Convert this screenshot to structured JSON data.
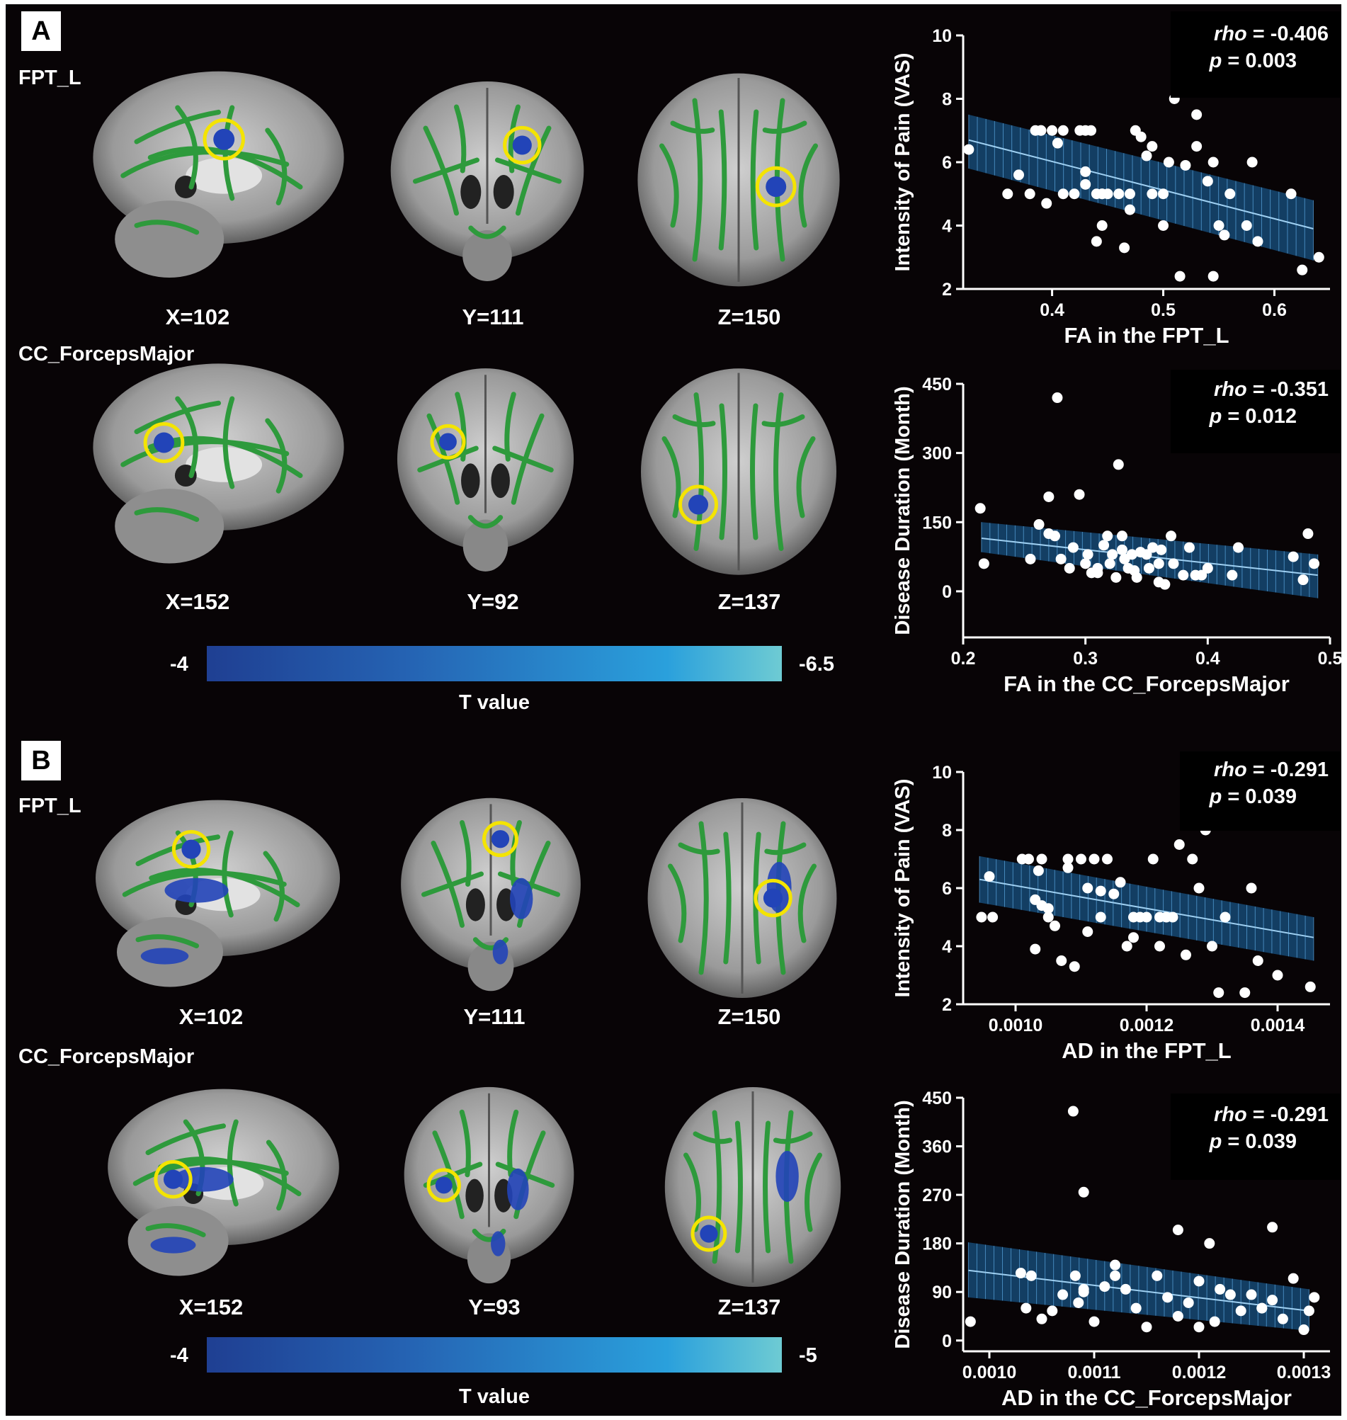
{
  "panels": {
    "A": {
      "letter": "A",
      "rows": [
        {
          "label": "FPT_L",
          "coords": [
            "X=102",
            "Y=111",
            "Z=150"
          ]
        },
        {
          "label": "CC_ForcepsMajor",
          "coords": [
            "X=152",
            "Y=92",
            "Z=137"
          ]
        }
      ],
      "colorbar": {
        "min_label": "-4",
        "max_label": "-6.5",
        "title": "T value"
      }
    },
    "B": {
      "letter": "B",
      "rows": [
        {
          "label": "FPT_L",
          "coords": [
            "X=102",
            "Y=111",
            "Z=150"
          ]
        },
        {
          "label": "CC_ForcepsMajor",
          "coords": [
            "X=152",
            "Y=93",
            "Z=137"
          ]
        }
      ],
      "colorbar": {
        "min_label": "-4",
        "max_label": "-5",
        "title": "T value"
      }
    }
  },
  "colors": {
    "background": "#080406",
    "tract_green": "#2e9a3c",
    "cluster_blue": "#2244b8",
    "circle_yellow": "#f4e400",
    "ci_band": "#1e6fb0",
    "points": "#ffffff"
  },
  "stats": [
    {
      "rho_label": "rho",
      "rho_value": " = -0.406",
      "p_label": "p",
      "p_value": " = 0.003"
    },
    {
      "rho_label": "rho",
      "rho_value": " = -0.351",
      "p_label": "p",
      "p_value": " = 0.012"
    },
    {
      "rho_label": "rho",
      "rho_value": " = -0.291",
      "p_label": "p",
      "p_value": " = 0.039"
    },
    {
      "rho_label": "rho",
      "rho_value": " = -0.291",
      "p_label": "p",
      "p_value": " = 0.039"
    }
  ],
  "chart_data": [
    {
      "type": "scatter",
      "panel": "A",
      "xlabel": "FA in the FPT_L",
      "ylabel": "Intensity of Pain (VAS)",
      "xlim": [
        0.32,
        0.65
      ],
      "ylim": [
        2,
        10
      ],
      "xticks": [
        0.4,
        0.5,
        0.6
      ],
      "xtick_labels": [
        "0.4",
        "0.5",
        "0.6"
      ],
      "yticks": [
        2,
        4,
        6,
        8,
        10
      ],
      "ytick_labels": [
        "2",
        "4",
        "6",
        "8",
        "10"
      ],
      "fit": {
        "x": [
          0.325,
          0.635
        ],
        "y": [
          6.7,
          3.9
        ],
        "ci_upper": [
          7.5,
          4.8
        ],
        "ci_lower": [
          5.8,
          2.9
        ]
      },
      "x": [
        0.325,
        0.37,
        0.36,
        0.38,
        0.385,
        0.39,
        0.4,
        0.41,
        0.405,
        0.39,
        0.395,
        0.425,
        0.43,
        0.435,
        0.42,
        0.41,
        0.43,
        0.44,
        0.445,
        0.45,
        0.445,
        0.44,
        0.46,
        0.465,
        0.47,
        0.475,
        0.48,
        0.485,
        0.49,
        0.49,
        0.5,
        0.5,
        0.505,
        0.51,
        0.52,
        0.515,
        0.53,
        0.53,
        0.54,
        0.545,
        0.55,
        0.555,
        0.56,
        0.575,
        0.58,
        0.585,
        0.615,
        0.625,
        0.64,
        0.445,
        0.43,
        0.47,
        0.545
      ],
      "y": [
        6.4,
        5.6,
        5.0,
        5.0,
        7.0,
        7.0,
        7.0,
        7.0,
        6.6,
        7.0,
        4.7,
        7.0,
        7.0,
        7.0,
        5.0,
        5.0,
        5.7,
        5.0,
        5.0,
        5.0,
        4.0,
        3.5,
        5.0,
        3.3,
        4.5,
        7.0,
        6.8,
        6.2,
        5.0,
        6.5,
        5.0,
        4.0,
        6.0,
        8.0,
        5.9,
        2.4,
        7.5,
        6.5,
        5.4,
        2.4,
        4.0,
        3.7,
        5.0,
        4.0,
        6.0,
        3.5,
        5.0,
        2.6,
        3.0,
        5.0,
        5.3,
        5.0,
        6.0
      ]
    },
    {
      "type": "scatter",
      "panel": "A",
      "xlabel": "FA in the CC_ForcepsMajor",
      "ylabel": "Disease Duration (Month)",
      "xlim": [
        0.2,
        0.5
      ],
      "ylim": [
        -100,
        450
      ],
      "xticks": [
        0.2,
        0.3,
        0.4,
        0.5
      ],
      "xtick_labels": [
        "0.2",
        "0.3",
        "0.4",
        "0.5"
      ],
      "yticks": [
        0,
        150,
        300,
        450
      ],
      "ytick_labels": [
        "0",
        "150",
        "300",
        "450"
      ],
      "fit": {
        "x": [
          0.215,
          0.49
        ],
        "y": [
          115,
          35
        ],
        "ci_upper": [
          150,
          80
        ],
        "ci_lower": [
          85,
          -15
        ]
      },
      "x": [
        0.214,
        0.217,
        0.255,
        0.262,
        0.27,
        0.27,
        0.277,
        0.275,
        0.28,
        0.287,
        0.29,
        0.295,
        0.3,
        0.302,
        0.305,
        0.31,
        0.31,
        0.315,
        0.318,
        0.32,
        0.322,
        0.325,
        0.327,
        0.33,
        0.332,
        0.335,
        0.338,
        0.34,
        0.342,
        0.345,
        0.35,
        0.352,
        0.355,
        0.36,
        0.362,
        0.365,
        0.37,
        0.372,
        0.38,
        0.385,
        0.39,
        0.395,
        0.4,
        0.42,
        0.425,
        0.47,
        0.478,
        0.482,
        0.487,
        0.33,
        0.36
      ],
      "y": [
        180,
        60,
        70,
        145,
        125,
        205,
        420,
        120,
        70,
        50,
        95,
        210,
        60,
        80,
        40,
        50,
        40,
        100,
        120,
        60,
        80,
        30,
        275,
        90,
        70,
        50,
        80,
        45,
        30,
        85,
        80,
        50,
        95,
        20,
        90,
        15,
        120,
        60,
        35,
        95,
        35,
        35,
        50,
        35,
        95,
        75,
        25,
        125,
        60,
        120,
        60
      ]
    },
    {
      "type": "scatter",
      "panel": "B",
      "xlabel": "AD in the FPT_L",
      "ylabel": "Intensity of Pain (VAS)",
      "xlim": [
        0.00092,
        0.00148
      ],
      "ylim": [
        2,
        10
      ],
      "xticks": [
        0.001,
        0.0012,
        0.0014
      ],
      "xtick_labels": [
        "0.0010",
        "0.0012",
        "0.0014"
      ],
      "yticks": [
        2,
        4,
        6,
        8,
        10
      ],
      "ytick_labels": [
        "2",
        "4",
        "6",
        "8",
        "10"
      ],
      "fit": {
        "x": [
          0.000945,
          0.001455
        ],
        "y": [
          6.3,
          4.3
        ],
        "ci_upper": [
          7.1,
          5.0
        ],
        "ci_lower": [
          5.5,
          3.5
        ]
      },
      "x": [
        0.000948,
        0.00096,
        0.000965,
        0.00101,
        0.00102,
        0.00103,
        0.00104,
        0.00103,
        0.001035,
        0.00105,
        0.00106,
        0.00107,
        0.00108,
        0.00109,
        0.0011,
        0.00111,
        0.00111,
        0.00112,
        0.00113,
        0.00114,
        0.00115,
        0.00116,
        0.00117,
        0.00118,
        0.00119,
        0.0012,
        0.00121,
        0.00122,
        0.00123,
        0.00124,
        0.00125,
        0.00126,
        0.00127,
        0.00128,
        0.00129,
        0.0013,
        0.00131,
        0.00132,
        0.00135,
        0.00136,
        0.00137,
        0.0014,
        0.00145,
        0.00104,
        0.00113,
        0.00105,
        0.00108,
        0.00118,
        0.00122
      ],
      "y": [
        5.0,
        6.4,
        5.0,
        7.0,
        7.0,
        5.6,
        7.0,
        3.9,
        6.6,
        5.0,
        4.7,
        3.5,
        7.0,
        3.3,
        7.0,
        4.5,
        6.0,
        7.0,
        5.0,
        7.0,
        5.8,
        6.2,
        4.0,
        5.0,
        5.0,
        5.0,
        7.0,
        4.0,
        5.0,
        5.0,
        7.5,
        3.7,
        7.0,
        6.0,
        8.0,
        4.0,
        2.4,
        5.0,
        2.4,
        6.0,
        3.5,
        3.0,
        2.6,
        5.4,
        5.9,
        5.3,
        6.7,
        4.3,
        5.0
      ]
    },
    {
      "type": "scatter",
      "panel": "B",
      "xlabel": "AD in the CC_ForcepsMajor",
      "ylabel": "Disease Duration (Month)",
      "xlim": [
        0.000975,
        0.001325
      ],
      "ylim": [
        -20,
        450
      ],
      "xticks": [
        0.001,
        0.0011,
        0.0012,
        0.0013
      ],
      "xtick_labels": [
        "0.0010",
        "0.0011",
        "0.0012",
        "0.0013"
      ],
      "yticks": [
        0,
        90,
        180,
        270,
        360,
        450
      ],
      "ytick_labels": [
        "0",
        "90",
        "180",
        "270",
        "360",
        "450"
      ],
      "fit": {
        "x": [
          0.00098,
          0.001305
        ],
        "y": [
          130,
          55
        ],
        "ci_upper": [
          182,
          95
        ],
        "ci_lower": [
          80,
          18
        ]
      },
      "x": [
        0.000982,
        0.00103,
        0.001035,
        0.00104,
        0.00105,
        0.00106,
        0.00107,
        0.00108,
        0.001082,
        0.001085,
        0.00109,
        0.00109,
        0.0011,
        0.00111,
        0.00112,
        0.00112,
        0.00113,
        0.00114,
        0.00115,
        0.00116,
        0.00117,
        0.00118,
        0.00118,
        0.00119,
        0.0012,
        0.00121,
        0.00122,
        0.00123,
        0.00124,
        0.00125,
        0.00126,
        0.00127,
        0.00127,
        0.00128,
        0.00129,
        0.0013,
        0.001305,
        0.00131,
        0.00109,
        0.0012,
        0.001215,
        0.00126
      ],
      "y": [
        35,
        125,
        60,
        120,
        40,
        55,
        85,
        425,
        120,
        70,
        95,
        275,
        35,
        100,
        120,
        140,
        95,
        60,
        25,
        120,
        80,
        205,
        45,
        70,
        25,
        180,
        95,
        85,
        55,
        85,
        60,
        210,
        75,
        40,
        115,
        20,
        55,
        80,
        90,
        110,
        35,
        60
      ]
    }
  ]
}
